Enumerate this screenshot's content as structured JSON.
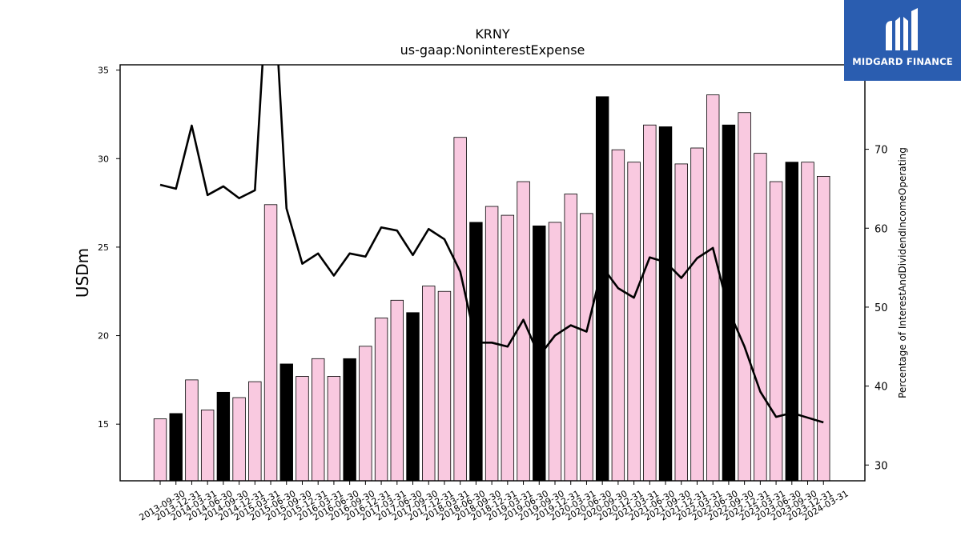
{
  "chart_data": {
    "type": "bar",
    "title": "KRNY",
    "subtitle": "us-gaap:NoninterestExpense",
    "ylabel": "USDm",
    "y2label": "Percentage of InterestAndDividendIncomeOperating",
    "ylim": [
      11.8,
      35.3
    ],
    "y2lim": [
      28,
      80.7
    ],
    "yticks": [
      15,
      20,
      25,
      30,
      35
    ],
    "y2ticks": [
      30,
      40,
      50,
      60,
      70
    ],
    "colors": {
      "quarter_bar": "#f9c9e0",
      "fy_bar": "#000000",
      "line": "#000000"
    },
    "categories": [
      "2013-09-30",
      "2013-12-31",
      "2014-03-31",
      "2014-06-30",
      "2014-09-30",
      "2014-12-31",
      "2015-03-31",
      "2015-06-30",
      "2015-09-30",
      "2015-12-31",
      "2016-03-31",
      "2016-06-30",
      "2016-09-30",
      "2016-12-31",
      "2017-03-31",
      "2017-06-30",
      "2017-09-30",
      "2017-12-31",
      "2018-03-31",
      "2018-06-30",
      "2018-09-30",
      "2018-12-31",
      "2019-03-31",
      "2019-06-30",
      "2019-09-30",
      "2019-12-31",
      "2020-03-31",
      "2020-06-30",
      "2020-09-30",
      "2020-12-31",
      "2021-03-31",
      "2021-06-30",
      "2021-09-30",
      "2021-12-31",
      "2022-03-31",
      "2022-06-30",
      "2022-09-30",
      "2022-12-31",
      "2023-03-31",
      "2023-06-30",
      "2023-09-30",
      "2023-12-31",
      "2024-03-31"
    ],
    "bar_values": [
      15.3,
      15.6,
      17.5,
      15.8,
      16.8,
      16.5,
      17.4,
      27.4,
      18.4,
      17.7,
      18.7,
      17.7,
      18.7,
      19.4,
      21.0,
      22.0,
      21.3,
      22.8,
      22.5,
      31.2,
      26.4,
      27.3,
      26.8,
      28.7,
      26.2,
      26.4,
      28.0,
      26.9,
      33.5,
      30.5,
      29.8,
      31.9,
      31.8,
      29.7,
      30.6,
      33.6,
      31.9,
      32.6,
      30.3,
      28.7,
      29.8,
      29.8,
      29.0
    ],
    "fy_bar_categories": [
      "2013-12-31",
      "2014-09-30",
      "2015-09-30",
      "2016-09-30",
      "2017-09-30",
      "2018-09-30",
      "2019-09-30",
      "2020-09-30",
      "2021-09-30",
      "2022-09-30",
      "2023-09-30"
    ],
    "line_values": [
      65.5,
      65.0,
      73.0,
      64.2,
      65.3,
      63.8,
      64.8,
      98.0,
      62.5,
      55.5,
      56.8,
      54.0,
      56.8,
      56.4,
      60.1,
      59.7,
      56.6,
      59.9,
      58.6,
      54.5,
      45.5,
      45.5,
      45.0,
      48.4,
      43.8,
      46.4,
      47.7,
      46.9,
      55.1,
      52.4,
      51.2,
      56.3,
      55.7,
      53.7,
      56.2,
      57.5,
      49.6,
      45.0,
      39.3,
      36.1,
      36.6,
      36.0,
      35.4
    ]
  },
  "logo": {
    "text": "MIDGARD FINANCE"
  }
}
